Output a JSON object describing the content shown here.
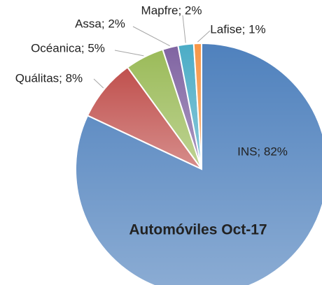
{
  "chart_data": {
    "type": "pie",
    "title": "Automóviles Oct-17",
    "categories": [
      "INS",
      "Quálitas",
      "Océanica",
      "Assa",
      "Mapfre",
      "Lafise"
    ],
    "values": [
      82,
      8,
      5,
      2,
      2,
      1
    ],
    "value_labels": [
      "INS; 82%",
      "Quálitas; 8%",
      "Océanica; 5%",
      "Assa; 2%",
      "Mapfre; 2%",
      "Lafise; 1%"
    ],
    "colors": [
      "#4f81bd",
      "#c0504d",
      "#9bbb59",
      "#8064a2",
      "#4bacc6",
      "#f79646"
    ]
  }
}
